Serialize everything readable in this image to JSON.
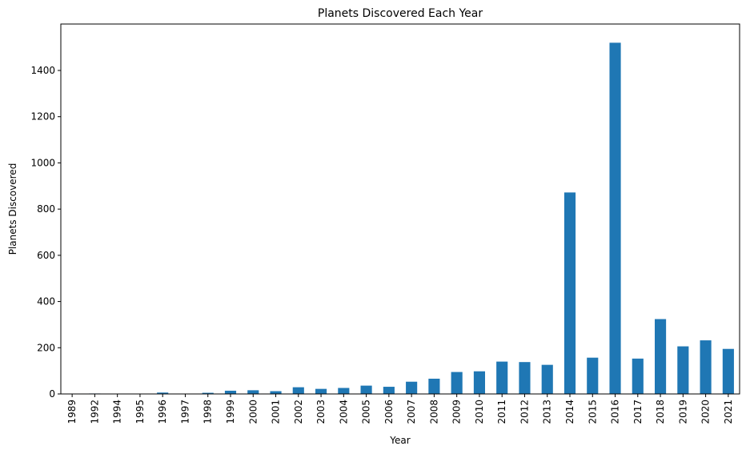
{
  "chart_data": {
    "type": "bar",
    "title": "Planets Discovered Each Year",
    "xlabel": "Year",
    "ylabel": "Planets Discovered",
    "ylim": [
      0,
      1600
    ],
    "yticks": [
      "0",
      "200",
      "400",
      "600",
      "800",
      "1000",
      "1200",
      "1400"
    ],
    "grid": false,
    "legend": "none",
    "bar_color": "#1f77b4",
    "categories": [
      "1989",
      "1992",
      "1994",
      "1995",
      "1996",
      "1997",
      "1998",
      "1999",
      "2000",
      "2001",
      "2002",
      "2003",
      "2004",
      "2005",
      "2006",
      "2007",
      "2008",
      "2009",
      "2010",
      "2011",
      "2012",
      "2013",
      "2014",
      "2015",
      "2016",
      "2017",
      "2018",
      "2019",
      "2020",
      "2021"
    ],
    "values": [
      1,
      2,
      1,
      1,
      6,
      1,
      5,
      14,
      16,
      12,
      29,
      22,
      26,
      36,
      31,
      53,
      66,
      95,
      98,
      140,
      138,
      126,
      872,
      157,
      1520,
      153,
      324,
      206,
      232,
      195
    ]
  }
}
